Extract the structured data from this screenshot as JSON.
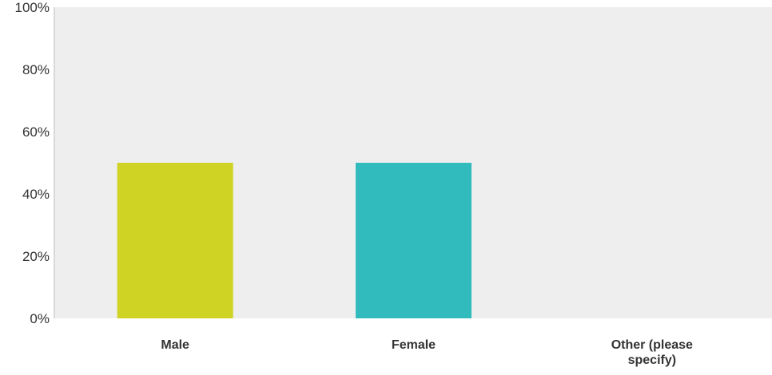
{
  "chart_data": {
    "type": "bar",
    "categories": [
      "Male",
      "Female",
      "Other (please specify)"
    ],
    "category_label_lines": [
      [
        "Male"
      ],
      [
        "Female"
      ],
      [
        "Other (please",
        "specify)"
      ]
    ],
    "values": [
      50,
      50,
      0
    ],
    "value_unit": "%",
    "ylim": [
      0,
      100
    ],
    "yticks": [
      0,
      20,
      40,
      60,
      80,
      100
    ],
    "ytick_labels": [
      "0%",
      "20%",
      "40%",
      "60%",
      "80%",
      "100%"
    ],
    "bar_colors": [
      "#cfd324",
      "#31bbbd",
      "#cccccc"
    ],
    "plot_background": "#eeeeee",
    "grid": false,
    "title": "",
    "xlabel": "",
    "ylabel": ""
  }
}
